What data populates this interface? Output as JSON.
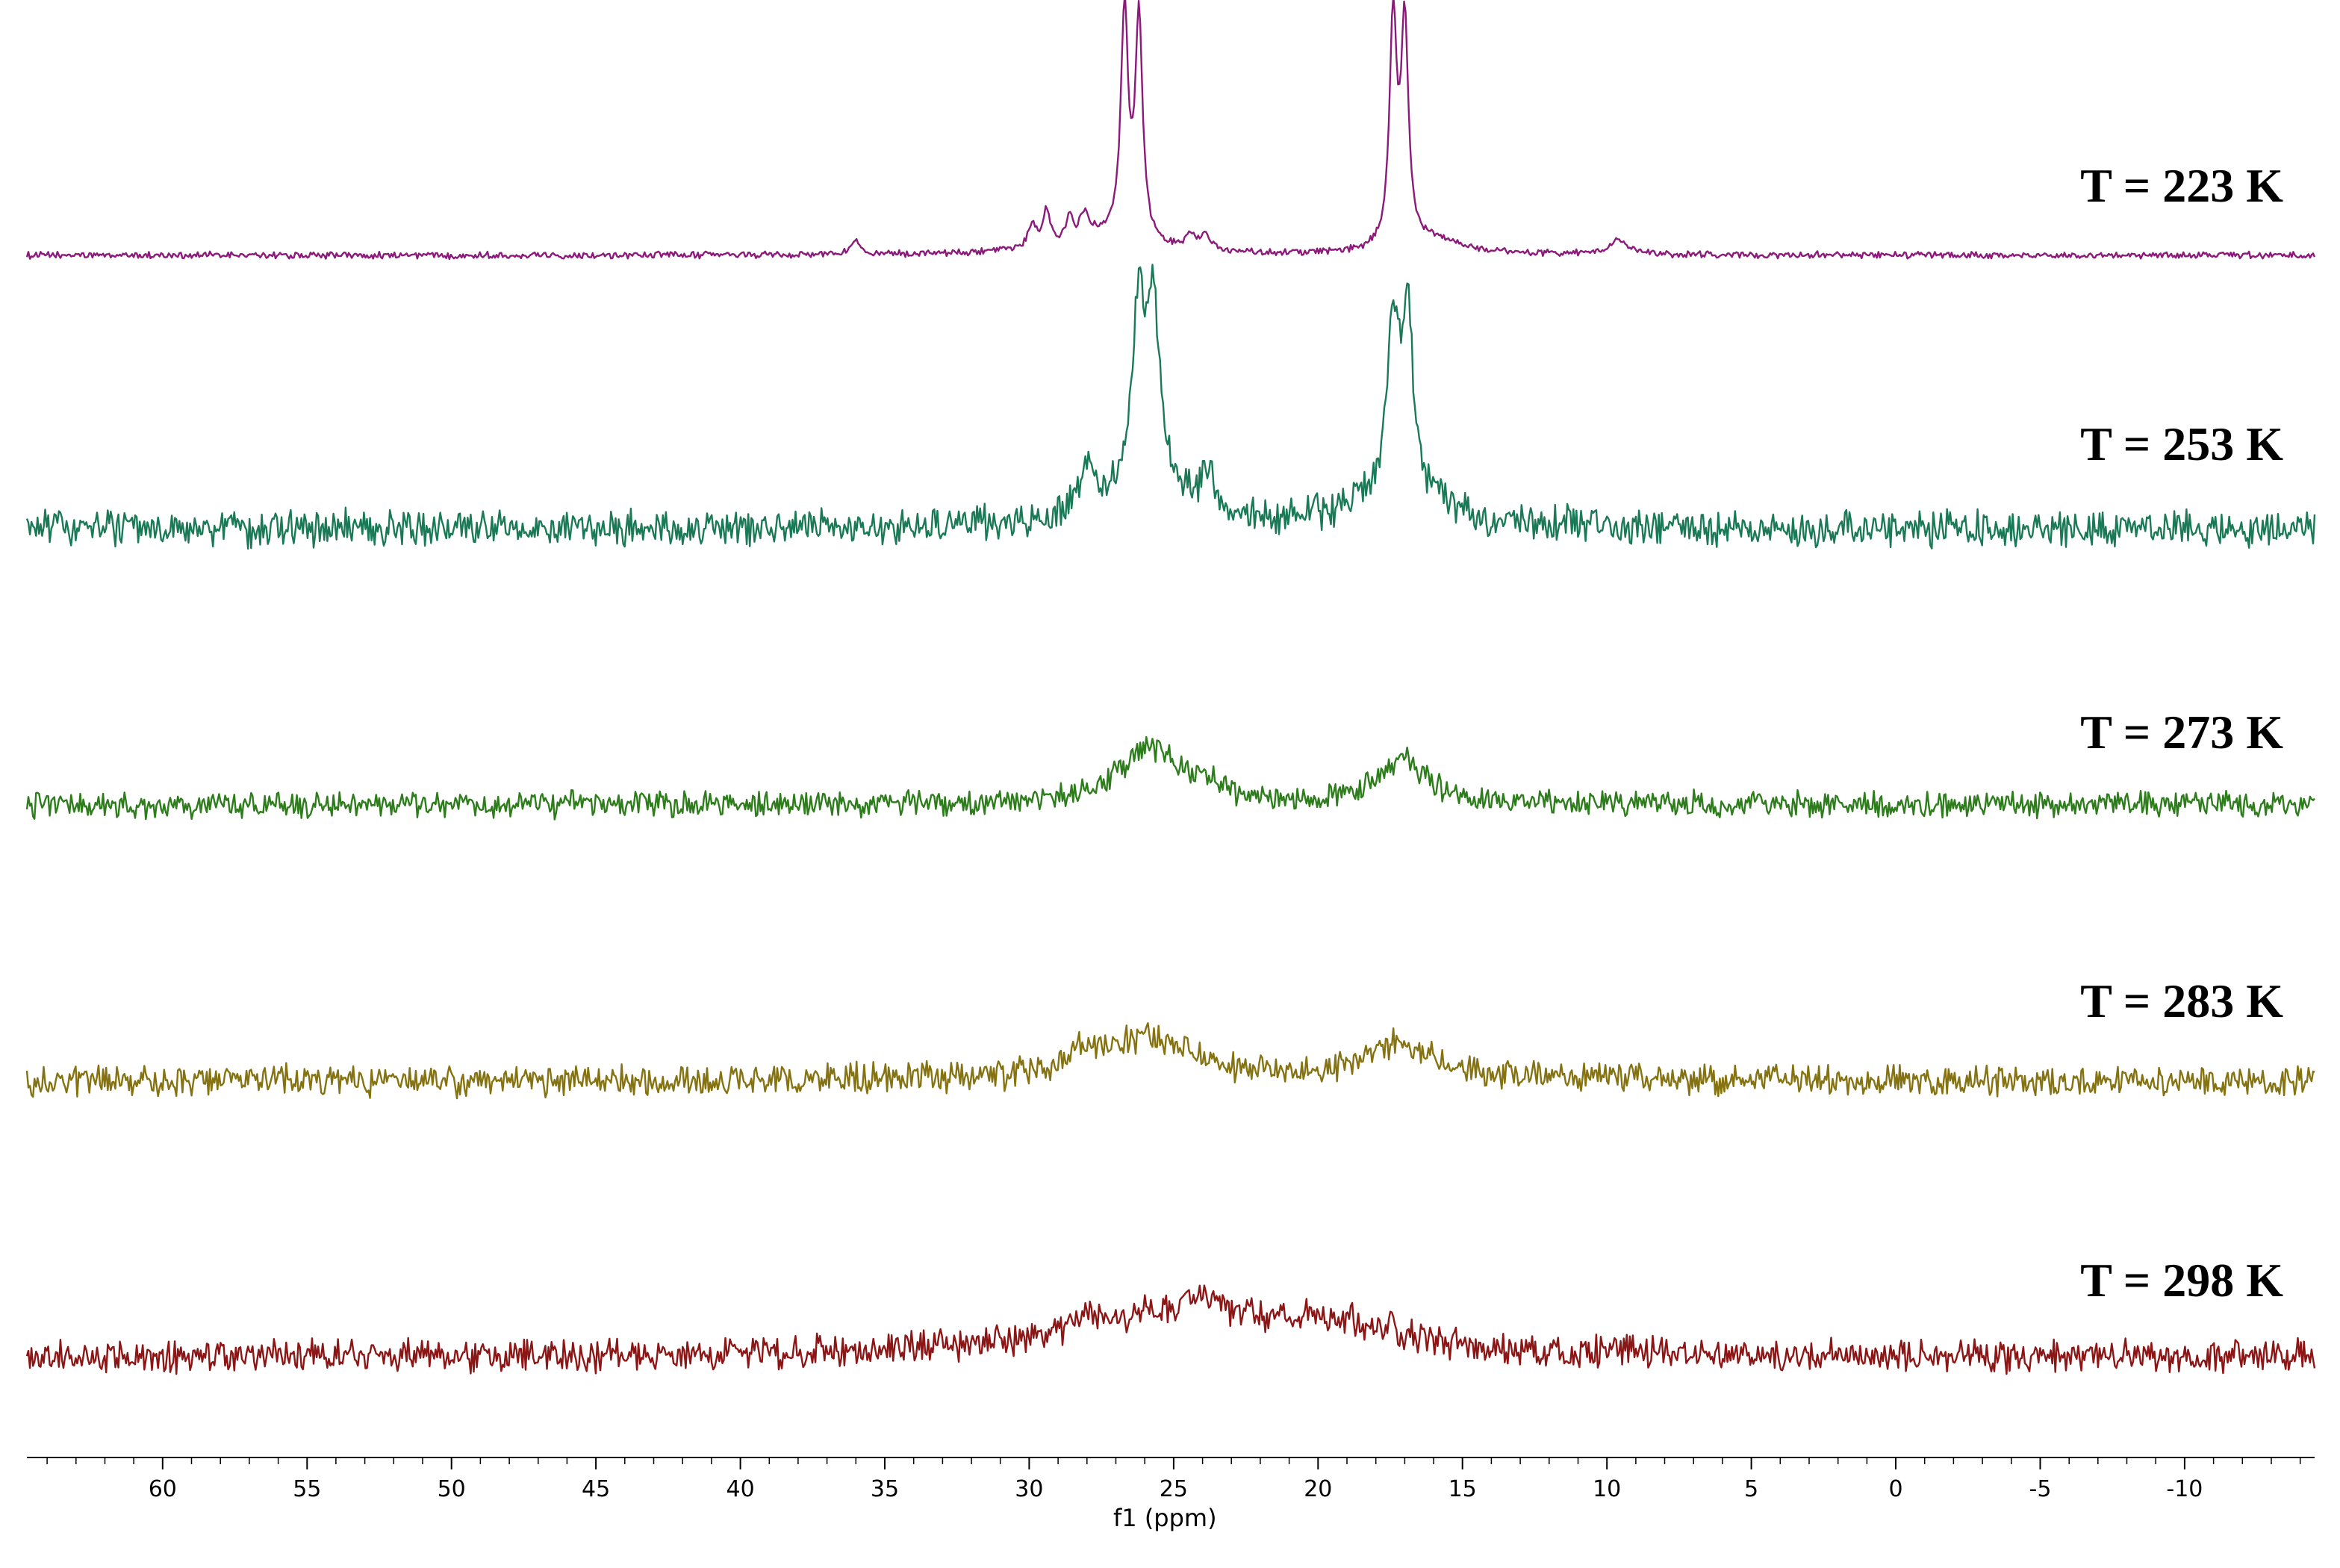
{
  "chart_data": {
    "type": "line",
    "title": "",
    "xlabel": "f1 (ppm)",
    "ylabel": "",
    "xlim": [
      64.7,
      -14.5
    ],
    "x_reversed": true,
    "x_ticks": [
      60,
      55,
      50,
      45,
      40,
      35,
      30,
      25,
      20,
      15,
      10,
      5,
      0,
      -5,
      -10
    ],
    "x_tick_labels": [
      "60",
      "55",
      "50",
      "45",
      "40",
      "35",
      "30",
      "25",
      "20",
      "15",
      "10",
      "5",
      "0",
      "-5",
      "-10"
    ],
    "grid": false,
    "legend": "none",
    "series": [
      {
        "name": "T = 223 K",
        "color": "#8b1a7a",
        "noise": 0.012,
        "peaks": [
          {
            "center": 26.7,
            "height": 1.0,
            "width": 0.15
          },
          {
            "center": 26.2,
            "height": 1.0,
            "width": 0.15
          },
          {
            "center": 17.4,
            "height": 1.0,
            "width": 0.15
          },
          {
            "center": 17.0,
            "height": 0.98,
            "width": 0.15
          },
          {
            "center": 29.4,
            "height": 0.16,
            "width": 0.15
          },
          {
            "center": 29.9,
            "height": 0.11,
            "width": 0.15
          },
          {
            "center": 28.6,
            "height": 0.1,
            "width": 0.15
          },
          {
            "center": 28.1,
            "height": 0.1,
            "width": 0.15
          },
          {
            "center": 36.0,
            "height": 0.07,
            "width": 0.2
          },
          {
            "center": 24.4,
            "height": 0.07,
            "width": 0.2
          },
          {
            "center": 23.9,
            "height": 0.06,
            "width": 0.2
          },
          {
            "center": 9.6,
            "height": 0.07,
            "width": 0.35
          },
          {
            "center": 27.5,
            "height": 0.09,
            "width": 1.6
          },
          {
            "center": 16.0,
            "height": 0.06,
            "width": 1.4
          }
        ]
      },
      {
        "name": "T = 253 K",
        "color": "#1a7a57",
        "noise": 0.07,
        "peaks": [
          {
            "center": 26.2,
            "height": 0.9,
            "width": 0.22
          },
          {
            "center": 25.7,
            "height": 0.9,
            "width": 0.22
          },
          {
            "center": 17.4,
            "height": 0.85,
            "width": 0.22
          },
          {
            "center": 16.9,
            "height": 0.85,
            "width": 0.22
          },
          {
            "center": 26.0,
            "height": 0.25,
            "width": 1.6
          },
          {
            "center": 17.1,
            "height": 0.2,
            "width": 1.6
          },
          {
            "center": 28.0,
            "height": 0.2,
            "width": 0.3
          },
          {
            "center": 23.8,
            "height": 0.18,
            "width": 0.3
          }
        ]
      },
      {
        "name": "T = 273 K",
        "color": "#2e7d1c",
        "noise": 0.05,
        "peaks": [
          {
            "center": 25.8,
            "height": 0.28,
            "width": 1.3
          },
          {
            "center": 17.1,
            "height": 0.22,
            "width": 1.0
          },
          {
            "center": 23.7,
            "height": 0.06,
            "width": 0.4
          }
        ]
      },
      {
        "name": "T = 283 K",
        "color": "#857312",
        "noise": 0.06,
        "peaks": [
          {
            "center": 26.0,
            "height": 0.22,
            "width": 2.0
          },
          {
            "center": 17.2,
            "height": 0.18,
            "width": 1.5
          },
          {
            "center": 28.2,
            "height": 0.1,
            "width": 0.35
          }
        ]
      },
      {
        "name": "T = 298 K",
        "color": "#8c1616",
        "noise": 0.065,
        "peaks": [
          {
            "center": 24.5,
            "height": 0.22,
            "width": 4.5
          },
          {
            "center": 19.0,
            "height": 0.1,
            "width": 2.5
          },
          {
            "center": 24.0,
            "height": 0.08,
            "width": 0.5
          },
          {
            "center": 28.0,
            "height": 0.06,
            "width": 0.6
          }
        ]
      }
    ]
  }
}
